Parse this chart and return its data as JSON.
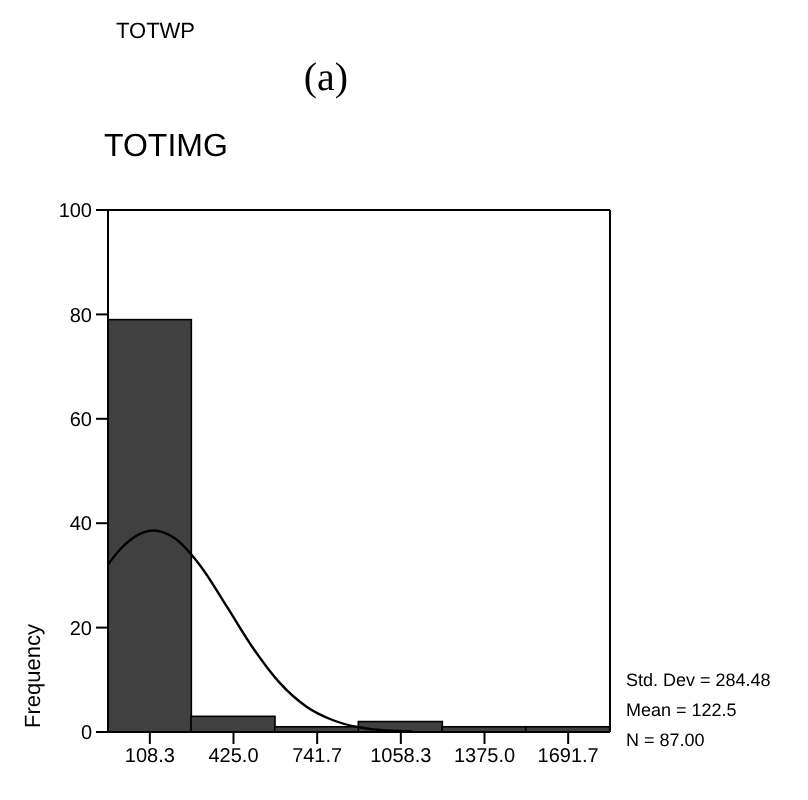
{
  "chart_data": {
    "type": "histogram",
    "title": "TOTIMG",
    "ylabel": "Frequency",
    "annotations": [
      "TOTWP",
      "(a)",
      "Std. Dev = 284.48",
      "Mean = 122.5",
      "N = 87.00"
    ],
    "bins": [
      -50,
      266.67,
      583.33,
      900,
      1216.67,
      1533.33,
      1850
    ],
    "values": [
      79,
      3,
      1,
      2,
      1,
      1
    ],
    "color": "#404040",
    "series": [
      {
        "type": "line",
        "color": "#000000",
        "x": [
          -50,
          0,
          122.5,
          200,
          300,
          400,
          500,
          600,
          700,
          800,
          900,
          1000,
          1100
        ],
        "values": [
          32.1,
          35.2,
          38.6,
          37.2,
          31.8,
          24.0,
          16.0,
          9.4,
          4.9,
          2.3,
          0.9,
          0.3,
          0.1
        ]
      }
    ],
    "xlim": [
      -50,
      1850
    ],
    "xticks": [
      {
        "value": 108.33,
        "label": "108.3"
      },
      {
        "value": 425,
        "label": "425.0"
      },
      {
        "value": 741.67,
        "label": "741.7"
      },
      {
        "value": 1058.33,
        "label": "1058.3"
      },
      {
        "value": 1375,
        "label": "1375.0"
      },
      {
        "value": 1691.67,
        "label": "1691.7"
      }
    ],
    "ylim": [
      0,
      100
    ],
    "yticks": [
      0,
      20,
      40,
      60,
      80,
      100
    ],
    "grid": false,
    "legend": false
  }
}
